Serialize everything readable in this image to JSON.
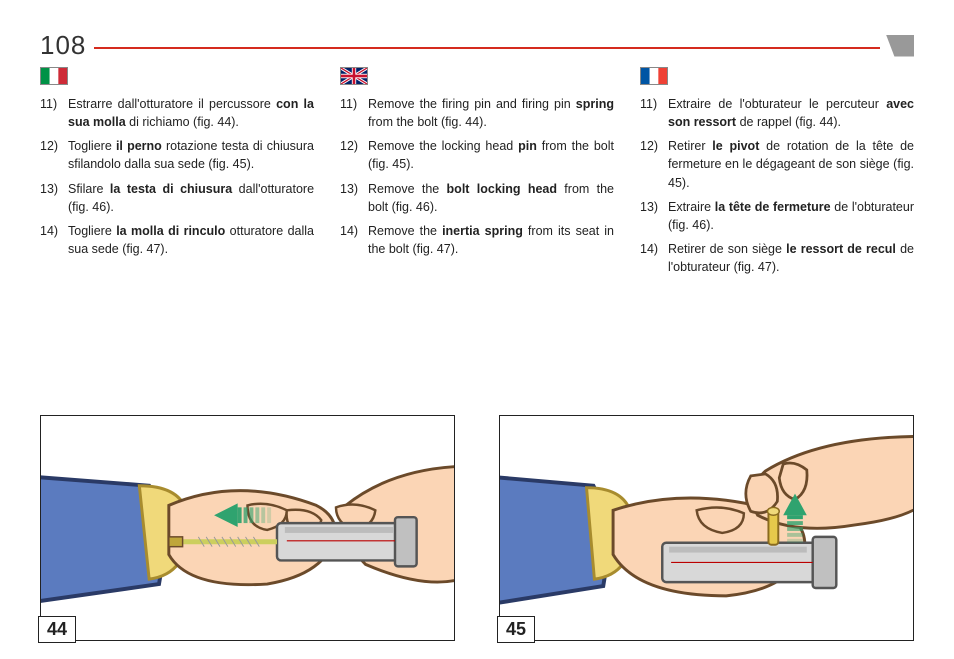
{
  "page_number": "108",
  "columns": [
    {
      "flag": "it",
      "items": [
        {
          "num": "11)",
          "html": "Estrarre dall'otturatore il percussore <b>con la sua molla</b> di richiamo (fig. 44)."
        },
        {
          "num": "12)",
          "html": "Togliere <b>il perno</b> rotazione testa di chiusura sfilandolo dalla sua sede (fig. 45)."
        },
        {
          "num": "13)",
          "html": "Sfilare <b>la testa di chiusura</b> dall'otturatore (fig. 46)."
        },
        {
          "num": "14)",
          "html": "Togliere <b>la molla di rinculo</b> otturatore dalla sua sede (fig. 47)."
        }
      ]
    },
    {
      "flag": "gb",
      "items": [
        {
          "num": "11)",
          "html": "Remove the firing pin and firing pin <b>spring</b> from the bolt (fig. 44)."
        },
        {
          "num": "12)",
          "html": "Remove the locking head <b>pin</b> from the bolt (fig. 45)."
        },
        {
          "num": "13)",
          "html": "Remove the <b>bolt locking head</b> from the bolt (fig. 46)."
        },
        {
          "num": "14)",
          "html": "Remove the <b>inertia spring</b> from its seat in the bolt (fig. 47)."
        }
      ]
    },
    {
      "flag": "fr",
      "items": [
        {
          "num": "11)",
          "html": "Extraire de l'obturateur le percuteur <b>avec son ressort</b> de rappel (fig. 44)."
        },
        {
          "num": "12)",
          "html": "Retirer <b>le pivot</b> de rotation de la tête de fermeture en le dégageant de son siège (fig. 45)."
        },
        {
          "num": "13)",
          "html": "Extraire <b>la tête de fermeture</b> de l'obturateur (fig. 46)."
        },
        {
          "num": "14)",
          "html": "Retirer de son siège <b>le ressort de recul</b> de l'obturateur (fig. 47)."
        }
      ]
    }
  ],
  "figures": [
    {
      "label": "44"
    },
    {
      "label": "45"
    }
  ],
  "colors": {
    "red": "#d52b1e",
    "skin": "#fbd5b5",
    "skin_line": "#6b4a2a",
    "sleeve": "#5b7bbf",
    "cuff": "#f0d97a",
    "bolt_fill": "#d8d8d8",
    "bolt_stroke": "#555",
    "spring": "#cccf5e",
    "arrow": "#2fa36f",
    "pin": "#e6c94b"
  }
}
